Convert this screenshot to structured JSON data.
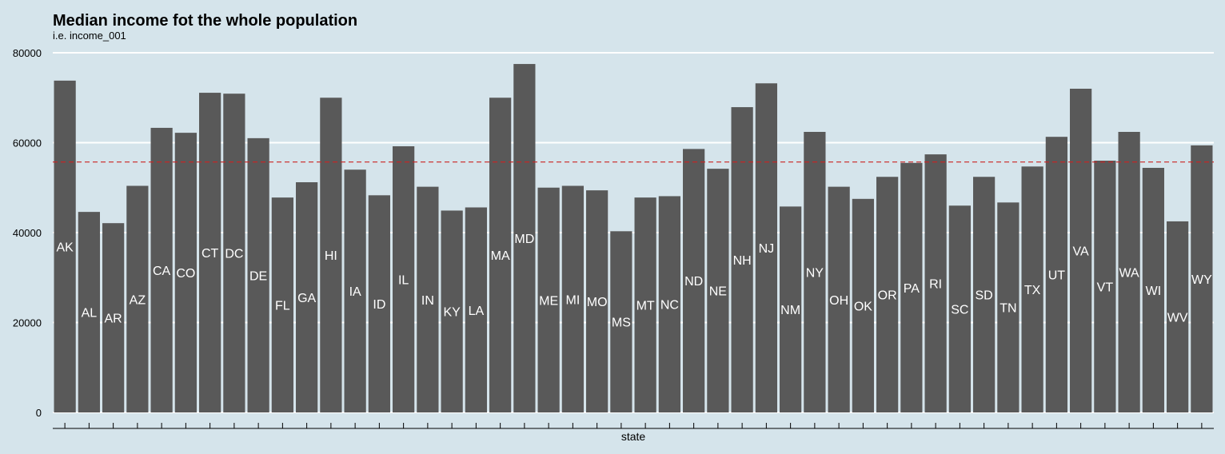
{
  "chart_data": {
    "type": "bar",
    "title": "Median income fot the whole population",
    "subtitle": "i.e. income_001",
    "xlabel": "state",
    "ylabel": "",
    "ylim": [
      0,
      80000
    ],
    "yticks": [
      "0",
      "20000",
      "40000",
      "60000",
      "80000"
    ],
    "ytick_values": [
      0,
      20000,
      40000,
      60000,
      80000
    ],
    "grid": "horizontal",
    "reference_line": {
      "value": 55700,
      "style": "dashed",
      "color": "#cc2222"
    },
    "bar_color": "#595959",
    "label_color": "#ffffff",
    "background": "#d5e4eb",
    "categories": [
      "AK",
      "AL",
      "AR",
      "AZ",
      "CA",
      "CO",
      "CT",
      "DC",
      "DE",
      "FL",
      "GA",
      "HI",
      "IA",
      "ID",
      "IL",
      "IN",
      "KY",
      "LA",
      "MA",
      "MD",
      "ME",
      "MI",
      "MO",
      "MS",
      "MT",
      "NC",
      "ND",
      "NE",
      "NH",
      "NJ",
      "NM",
      "NY",
      "OH",
      "OK",
      "OR",
      "PA",
      "RI",
      "SC",
      "SD",
      "TN",
      "TX",
      "UT",
      "VA",
      "VT",
      "WA",
      "WI",
      "WV",
      "WY"
    ],
    "values": [
      73800,
      44600,
      42100,
      50400,
      63300,
      62200,
      71100,
      70900,
      61000,
      47800,
      51200,
      70000,
      54000,
      48300,
      59200,
      50200,
      44900,
      45600,
      70000,
      77500,
      50000,
      50400,
      49400,
      40300,
      47800,
      48100,
      58600,
      54200,
      67900,
      73200,
      45800,
      62400,
      50200,
      47500,
      52400,
      55500,
      57400,
      46000,
      52400,
      46700,
      54700,
      61300,
      72000,
      56000,
      62400,
      54400,
      42500,
      59400
    ]
  }
}
